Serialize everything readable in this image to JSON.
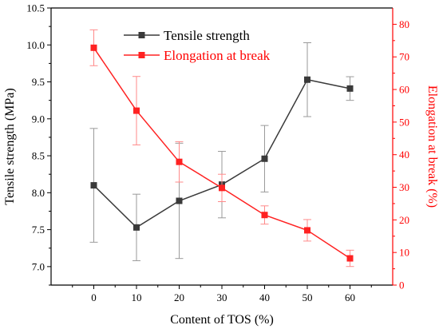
{
  "chart_data": {
    "type": "line",
    "x": [
      0,
      10,
      20,
      30,
      40,
      50,
      60
    ],
    "xlabel": "Content of TOS (%)",
    "x_ticks": [
      0,
      10,
      20,
      30,
      40,
      50,
      60
    ],
    "xlim": [
      -10,
      70
    ],
    "y_left": {
      "label": "Tensile strength (MPa)",
      "lim": [
        6.75,
        10.5
      ],
      "ticks": [
        "7.0",
        "7.5",
        "8.0",
        "8.5",
        "9.0",
        "9.5",
        "10.0",
        "10.5"
      ],
      "color": "#000000"
    },
    "y_right": {
      "label": "Elongation at break (%)",
      "lim": [
        0,
        85
      ],
      "ticks": [
        "0",
        "10",
        "20",
        "30",
        "40",
        "50",
        "60",
        "70",
        "80"
      ],
      "color": "#ff0000"
    },
    "series": [
      {
        "name": "Tensile strength",
        "axis": "left",
        "color": "#3a3a3a",
        "values": [
          8.1,
          7.53,
          7.89,
          8.11,
          8.46,
          9.53,
          9.41
        ],
        "errors": [
          0.77,
          0.45,
          0.78,
          0.45,
          0.45,
          0.5,
          0.16
        ]
      },
      {
        "name": "Elongation at break",
        "axis": "right",
        "color": "#ff2222",
        "values": [
          72.8,
          53.5,
          37.8,
          29.8,
          21.5,
          16.8,
          8.2
        ],
        "errors": [
          5.5,
          10.5,
          6.2,
          4.2,
          2.8,
          3.3,
          2.5
        ]
      }
    ],
    "legend_position": "top-center",
    "grid": false
  }
}
